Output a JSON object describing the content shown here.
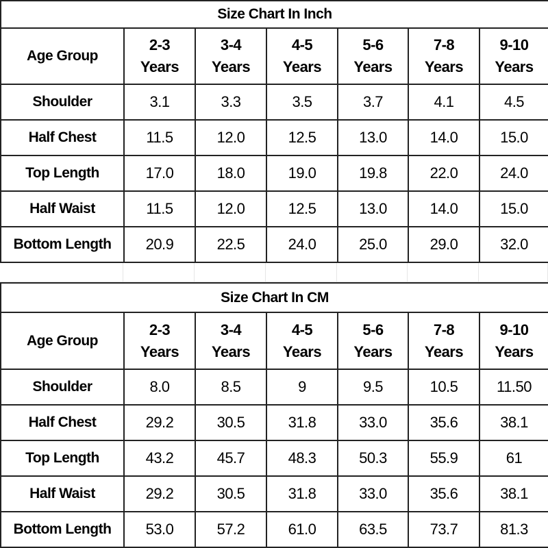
{
  "tables": [
    {
      "title": "Size Chart In Inch",
      "header_label": "Age Group",
      "columns": [
        [
          "2-3",
          "Years"
        ],
        [
          "3-4",
          "Years"
        ],
        [
          "4-5",
          "Years"
        ],
        [
          "5-6",
          "Years"
        ],
        [
          "7-8",
          "Years"
        ],
        [
          "9-10",
          "Years"
        ]
      ],
      "rows": [
        {
          "label": "Shoulder",
          "values": [
            "3.1",
            "3.3",
            "3.5",
            "3.7",
            "4.1",
            "4.5"
          ]
        },
        {
          "label": "Half Chest",
          "values": [
            "11.5",
            "12.0",
            "12.5",
            "13.0",
            "14.0",
            "15.0"
          ]
        },
        {
          "label": "Top Length",
          "values": [
            "17.0",
            "18.0",
            "19.0",
            "19.8",
            "22.0",
            "24.0"
          ]
        },
        {
          "label": "Half Waist",
          "values": [
            "11.5",
            "12.0",
            "12.5",
            "13.0",
            "14.0",
            "15.0"
          ]
        },
        {
          "label": "Bottom Length",
          "values": [
            "20.9",
            "22.5",
            "24.0",
            "25.0",
            "29.0",
            "32.0"
          ]
        }
      ]
    },
    {
      "title": "Size Chart In CM",
      "header_label": "Age Group",
      "columns": [
        [
          "2-3",
          "Years"
        ],
        [
          "3-4",
          "Years"
        ],
        [
          "4-5",
          "Years"
        ],
        [
          "5-6",
          "Years"
        ],
        [
          "7-8",
          "Years"
        ],
        [
          "9-10",
          "Years"
        ]
      ],
      "rows": [
        {
          "label": "Shoulder",
          "values": [
            "8.0",
            "8.5",
            "9",
            "9.5",
            "10.5",
            "11.50"
          ]
        },
        {
          "label": "Half Chest",
          "values": [
            "29.2",
            "30.5",
            "31.8",
            "33.0",
            "35.6",
            "38.1"
          ]
        },
        {
          "label": "Top Length",
          "values": [
            "43.2",
            "45.7",
            "48.3",
            "50.3",
            "55.9",
            "61"
          ]
        },
        {
          "label": "Half Waist",
          "values": [
            "29.2",
            "30.5",
            "31.8",
            "33.0",
            "35.6",
            "38.1"
          ]
        },
        {
          "label": "Bottom Length",
          "values": [
            "53.0",
            "57.2",
            "61.0",
            "63.5",
            "73.7",
            "81.3"
          ]
        }
      ]
    }
  ]
}
